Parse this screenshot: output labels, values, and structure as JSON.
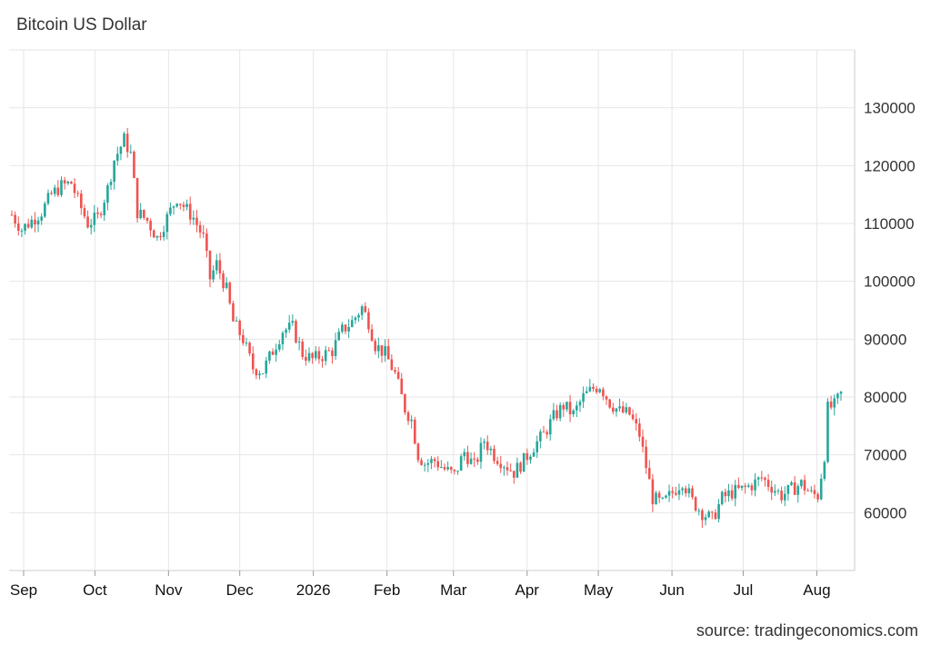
{
  "chart_data": {
    "type": "candlestick",
    "title": "Bitcoin US Dollar",
    "source": "source: tradingeconomics.com",
    "ylim": [
      50000,
      140000
    ],
    "y_ticks": [
      60000,
      70000,
      80000,
      90000,
      100000,
      110000,
      120000,
      130000
    ],
    "x_ticks": [
      "Sep",
      "Oct",
      "Nov",
      "Dec",
      "2026",
      "Feb",
      "Mar",
      "Apr",
      "May",
      "Jun",
      "Jul",
      "Aug"
    ],
    "colors": {
      "up": "#26a69a",
      "down": "#ef5350",
      "grid": "#e6e6e6",
      "text": "#333333"
    },
    "close_path": [
      [
        0,
        111500
      ],
      [
        3,
        109000
      ],
      [
        6,
        110500
      ],
      [
        9,
        112000
      ],
      [
        12,
        115000
      ],
      [
        15,
        116500
      ],
      [
        18,
        117000
      ],
      [
        20,
        114000
      ],
      [
        23,
        110000
      ],
      [
        26,
        111000
      ],
      [
        29,
        116000
      ],
      [
        31,
        121000
      ],
      [
        34,
        124500
      ],
      [
        36,
        122000
      ],
      [
        38,
        112000
      ],
      [
        41,
        110500
      ],
      [
        44,
        107500
      ],
      [
        47,
        111000
      ],
      [
        50,
        114500
      ],
      [
        52,
        113000
      ],
      [
        55,
        111000
      ],
      [
        58,
        107500
      ],
      [
        60,
        100500
      ],
      [
        62,
        103000
      ],
      [
        65,
        98500
      ],
      [
        67,
        93000
      ],
      [
        70,
        90000
      ],
      [
        73,
        85000
      ],
      [
        76,
        84500
      ],
      [
        79,
        88000
      ],
      [
        82,
        91500
      ],
      [
        85,
        92000
      ],
      [
        88,
        87500
      ],
      [
        91,
        86500
      ],
      [
        94,
        87200
      ],
      [
        97,
        88000
      ],
      [
        100,
        91500
      ],
      [
        103,
        93000
      ],
      [
        106,
        95500
      ],
      [
        108,
        93000
      ],
      [
        110,
        89000
      ],
      [
        113,
        87500
      ],
      [
        116,
        84000
      ],
      [
        119,
        78000
      ],
      [
        121,
        76000
      ],
      [
        123,
        70000
      ],
      [
        125,
        68500
      ],
      [
        128,
        69000
      ],
      [
        131,
        67500
      ],
      [
        134,
        66500
      ],
      [
        137,
        70500
      ],
      [
        140,
        68000
      ],
      [
        143,
        72500
      ],
      [
        146,
        70000
      ],
      [
        149,
        68500
      ],
      [
        152,
        67000
      ],
      [
        155,
        69000
      ],
      [
        158,
        71500
      ],
      [
        161,
        73500
      ],
      [
        164,
        76500
      ],
      [
        167,
        78500
      ],
      [
        170,
        77000
      ],
      [
        173,
        80000
      ],
      [
        176,
        81500
      ],
      [
        178,
        82000
      ],
      [
        181,
        79000
      ],
      [
        184,
        77500
      ],
      [
        187,
        77000
      ],
      [
        190,
        73500
      ],
      [
        192,
        68000
      ],
      [
        194,
        62500
      ],
      [
        197,
        61500
      ],
      [
        200,
        63500
      ],
      [
        203,
        65500
      ],
      [
        206,
        62000
      ],
      [
        209,
        60000
      ],
      [
        212,
        58800
      ],
      [
        215,
        62500
      ],
      [
        218,
        63500
      ],
      [
        221,
        64000
      ],
      [
        224,
        64800
      ],
      [
        227,
        66000
      ],
      [
        230,
        64500
      ],
      [
        233,
        63000
      ],
      [
        236,
        64000
      ],
      [
        239,
        65000
      ],
      [
        242,
        63200
      ],
      [
        244,
        63000
      ],
      [
        246,
        70000
      ],
      [
        247,
        78000
      ],
      [
        249,
        78500
      ],
      [
        251,
        80500
      ]
    ]
  }
}
